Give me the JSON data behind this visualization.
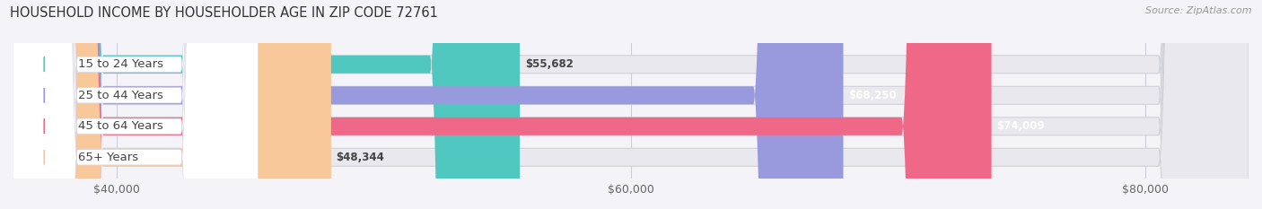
{
  "title": "HOUSEHOLD INCOME BY HOUSEHOLDER AGE IN ZIP CODE 72761",
  "source": "Source: ZipAtlas.com",
  "categories": [
    "15 to 24 Years",
    "25 to 44 Years",
    "45 to 64 Years",
    "65+ Years"
  ],
  "values": [
    55682,
    68250,
    74009,
    48344
  ],
  "bar_colors": [
    "#50c8c0",
    "#9999dd",
    "#f06888",
    "#f8c89a"
  ],
  "bar_bg_color": "#e8e8ee",
  "bar_label_bg": "#ffffff",
  "value_labels": [
    "$55,682",
    "$68,250",
    "$74,009",
    "$48,344"
  ],
  "x_min": 36000,
  "x_max": 84000,
  "x_ticks": [
    40000,
    60000,
    80000
  ],
  "x_tick_labels": [
    "$40,000",
    "$60,000",
    "$80,000"
  ],
  "title_fontsize": 10.5,
  "source_fontsize": 8,
  "cat_fontsize": 9.5,
  "val_fontsize": 8.5,
  "tick_fontsize": 9,
  "background_color": "#f4f4f8",
  "bar_row_bg": "#f8f8fc"
}
